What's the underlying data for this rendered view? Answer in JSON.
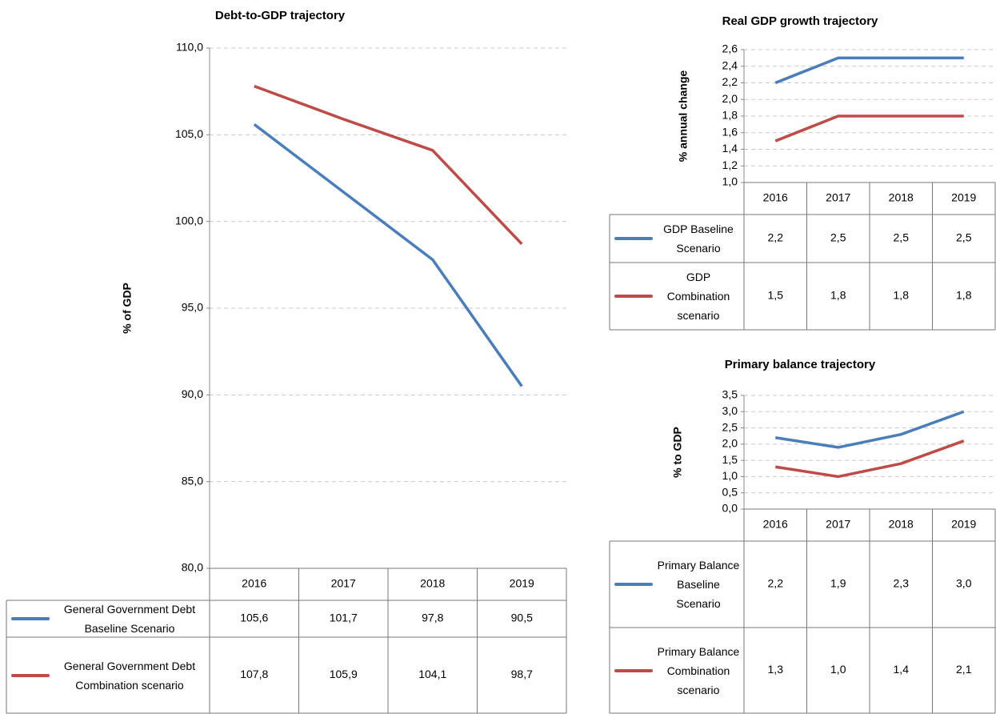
{
  "chart_data": [
    {
      "type": "line",
      "title": "Debt-to-GDP  trajectory",
      "y_label": "% of GDP",
      "categories": [
        "2016",
        "2017",
        "2018",
        "2019"
      ],
      "series": [
        {
          "name": "General Government Debt Baseline  Scenario",
          "color": "#4a7ebb",
          "values": [
            105.6,
            101.7,
            97.8,
            90.5
          ],
          "value_labels": [
            "105,6",
            "101,7",
            "97,8",
            "90,5"
          ]
        },
        {
          "name": "General Government Debt Combination scenario",
          "color": "#be4b48",
          "values": [
            107.8,
            105.9,
            104.1,
            98.7
          ],
          "value_labels": [
            "107,8",
            "105,9",
            "104,1",
            "98,7"
          ]
        }
      ],
      "ylim": [
        80,
        110
      ],
      "yticks": [
        {
          "value": 80,
          "label": "80,0"
        },
        {
          "value": 85,
          "label": "85,0"
        },
        {
          "value": 90,
          "label": "90,0"
        },
        {
          "value": 95,
          "label": "95,0"
        },
        {
          "value": 100,
          "label": "100,0"
        },
        {
          "value": 105,
          "label": "105,0"
        },
        {
          "value": 110,
          "label": "110,0"
        }
      ],
      "grid": true
    },
    {
      "type": "line",
      "title": "Real GDP growth trajectory",
      "y_label": "% annual change",
      "categories": [
        "2016",
        "2017",
        "2018",
        "2019"
      ],
      "series": [
        {
          "name": "GDP Baseline Scenario",
          "color": "#4a7ebb",
          "values": [
            2.2,
            2.5,
            2.5,
            2.5
          ],
          "value_labels": [
            "2,2",
            "2,5",
            "2,5",
            "2,5"
          ]
        },
        {
          "name": "GDP Combination scenario",
          "color": "#be4b48",
          "values": [
            1.5,
            1.8,
            1.8,
            1.8
          ],
          "value_labels": [
            "1,5",
            "1,8",
            "1,8",
            "1,8"
          ]
        }
      ],
      "ylim": [
        1.0,
        2.6
      ],
      "yticks": [
        {
          "value": 1.0,
          "label": "1,0"
        },
        {
          "value": 1.2,
          "label": "1,2"
        },
        {
          "value": 1.4,
          "label": "1,4"
        },
        {
          "value": 1.6,
          "label": "1,6"
        },
        {
          "value": 1.8,
          "label": "1,8"
        },
        {
          "value": 2.0,
          "label": "2,0"
        },
        {
          "value": 2.2,
          "label": "2,2"
        },
        {
          "value": 2.4,
          "label": "2,4"
        },
        {
          "value": 2.6,
          "label": "2,6"
        }
      ],
      "grid": true
    },
    {
      "type": "line",
      "title": "Primary balance trajectory",
      "y_label": "% to GDP",
      "categories": [
        "2016",
        "2017",
        "2018",
        "2019"
      ],
      "series": [
        {
          "name": "Primary Balance Baseline Scenario",
          "color": "#4a7ebb",
          "values": [
            2.2,
            1.9,
            2.3,
            3.0
          ],
          "value_labels": [
            "2,2",
            "1,9",
            "2,3",
            "3,0"
          ]
        },
        {
          "name": "Primary Balance Combination scenario",
          "color": "#be4b48",
          "values": [
            1.3,
            1.0,
            1.4,
            2.1
          ],
          "value_labels": [
            "1,3",
            "1,0",
            "1,4",
            "2,1"
          ]
        }
      ],
      "ylim": [
        0.0,
        3.5
      ],
      "yticks": [
        {
          "value": 0.0,
          "label": "0,0"
        },
        {
          "value": 0.5,
          "label": "0,5"
        },
        {
          "value": 1.0,
          "label": "1,0"
        },
        {
          "value": 1.5,
          "label": "1,5"
        },
        {
          "value": 2.0,
          "label": "2,0"
        },
        {
          "value": 2.5,
          "label": "2,5"
        },
        {
          "value": 3.0,
          "label": "3,0"
        },
        {
          "value": 3.5,
          "label": "3,5"
        }
      ],
      "grid": true
    }
  ]
}
